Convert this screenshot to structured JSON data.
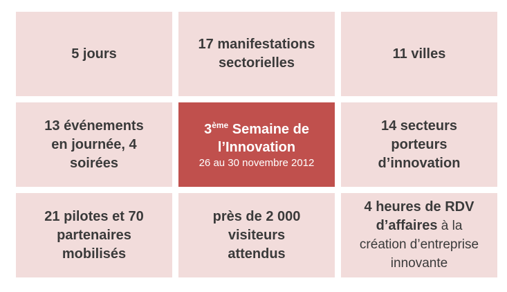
{
  "cells": {
    "c1": "5 jours",
    "c2": "17 manifestations\nsectorielles",
    "c3": "11 villes",
    "c4": "13 événements\nen journée, 4\nsoirées",
    "c5": {
      "number": "3",
      "sup": "ème",
      "title_line1": " Semaine de",
      "title_line2": "l’Innovation",
      "dates": "26 au 30 novembre 2012"
    },
    "c6": "14 secteurs\nporteurs\nd’innovation",
    "c7": "21 pilotes et 70\npartenaires\nmobilisés",
    "c8": "près de 2 000\nvisiteurs\nattendus",
    "c9": {
      "bold1": "4 heures de RDV",
      "bold2": "d’affaires",
      "rest1": " à la",
      "rest2": "création d’entreprise",
      "rest3": "innovante"
    }
  },
  "colors": {
    "cell_bg": "#f2dcdb",
    "center_bg": "#c0504d",
    "text": "#3a3a3a"
  }
}
